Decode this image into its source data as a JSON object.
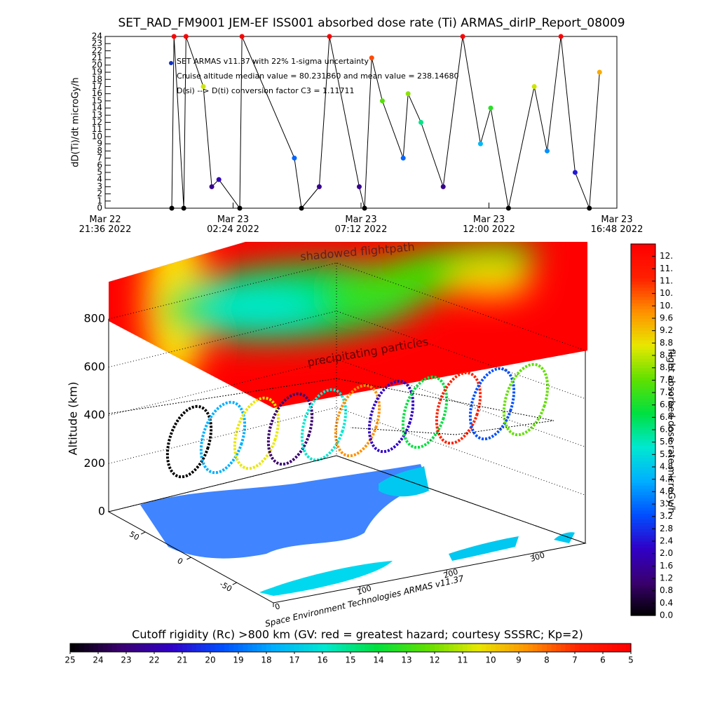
{
  "chart_data": [
    {
      "type": "line",
      "title": "SET_RAD_FM9001  JEM-EF ISS001 absorbed dose rate (Ti) ARMAS_dirIP_Report_08009",
      "y_label": "dD(Ti)/dt microGy/h",
      "annotations": [
        "SET ARMAS v11.37 with 22% 1-sigma uncertainty",
        "Cruise altitude median value = 80.231860 and mean value = 238.14680",
        "D(si) --> D(ti) conversion factor C3 = 1.11711"
      ],
      "x": [
        "2022-03-23T00:06",
        "2022-03-23T00:11",
        "2022-03-23T00:33",
        "2022-03-23T00:38",
        "2022-03-23T01:17",
        "2022-03-23T01:36",
        "2022-03-23T01:52",
        "2022-03-23T02:39",
        "2022-03-23T02:44",
        "2022-03-23T04:42",
        "2022-03-23T04:58",
        "2022-03-23T05:38",
        "2022-03-23T06:01",
        "2022-03-23T07:08",
        "2022-03-23T07:20",
        "2022-03-23T07:36",
        "2022-03-23T08:00",
        "2022-03-23T08:47",
        "2022-03-23T08:58",
        "2022-03-23T09:27",
        "2022-03-23T10:17",
        "2022-03-23T11:01",
        "2022-03-23T11:41",
        "2022-03-23T12:04",
        "2022-03-23T12:44",
        "2022-03-23T13:42",
        "2022-03-23T14:11",
        "2022-03-23T14:42",
        "2022-03-23T15:14",
        "2022-03-23T15:46",
        "2022-03-23T16:09"
      ],
      "values": [
        0,
        24,
        0,
        24,
        17,
        3,
        4,
        0,
        24,
        7,
        0,
        3,
        24,
        3,
        0,
        21,
        15,
        7,
        16,
        12,
        3,
        24,
        9,
        14,
        0,
        17,
        8,
        24,
        5,
        0,
        19
      ],
      "color": "#000000",
      "xlim": [
        "2022-03-22T21:36",
        "2022-03-23T16:48"
      ],
      "xticks": [
        {
          "value": "2022-03-22T21:36",
          "label": "Mar 22\n21:36 2022"
        },
        {
          "value": "2022-03-23T02:24",
          "label": "Mar 23\n02:24 2022"
        },
        {
          "value": "2022-03-23T07:12",
          "label": "Mar 23\n07:12 2022"
        },
        {
          "value": "2022-03-23T12:00",
          "label": "Mar 23\n12:00 2022"
        },
        {
          "value": "2022-03-23T16:48",
          "label": "Mar 23\n16:48 2022"
        }
      ],
      "ylim": [
        0,
        24
      ],
      "yticks": [
        0,
        1,
        2,
        3,
        4,
        5,
        6,
        7,
        8,
        9,
        10,
        11,
        12,
        13,
        14,
        15,
        16,
        17,
        18,
        19,
        20,
        21,
        22,
        23,
        24
      ]
    },
    {
      "type": "perspective3d",
      "z_label": "Altitude (km)",
      "zlim": [
        0,
        800
      ],
      "zticks": [
        0,
        200,
        400,
        600,
        800
      ],
      "xlim": [
        0,
        360
      ],
      "xticks": [
        0,
        100,
        200,
        300
      ],
      "ylim": [
        90,
        -90
      ],
      "yticks": [
        50,
        0,
        -50
      ],
      "annotations": [
        "shadowed flightpath",
        "precipitating particles"
      ],
      "credit": "Space Environment Technologies ARMAS v11.37"
    },
    {
      "type": "colorbar",
      "orientation": "vertical",
      "label": "flight absorbed dose rate microGy/h",
      "colors": [
        "#000000",
        "#3a0070",
        "#3000c8",
        "#0050ff",
        "#00b0ff",
        "#00e8d0",
        "#00e040",
        "#60e000",
        "#e8e800",
        "#ff9000",
        "#ff2000",
        "#ff0000"
      ],
      "lim": [
        0,
        12
      ],
      "ticks": [
        {
          "value": 0,
          "label": "0.0"
        },
        0.4,
        0.8,
        {
          "value": 1.2,
          "label": "1.2"
        },
        1.6,
        {
          "value": 2,
          "label": "2.0"
        },
        2.4,
        2.8,
        3.2,
        3.6,
        {
          "value": 4,
          "label": "4.0"
        },
        4.4,
        4.8,
        5.2,
        5.6,
        {
          "value": 6,
          "label": "6.0"
        },
        6.4,
        6.8,
        7.2,
        7.6,
        {
          "value": 8,
          "label": "8.0"
        },
        8.4,
        8.8,
        9.2,
        9.6,
        {
          "value": 10,
          "label": "10."
        },
        {
          "value": 10.4,
          "label": "10."
        },
        {
          "value": 10.8,
          "label": "11."
        },
        {
          "value": 11.2,
          "label": "11."
        },
        {
          "value": 11.6,
          "label": "12."
        }
      ]
    },
    {
      "type": "colorbar",
      "orientation": "horizontal",
      "label": "Cutoff rigidity (Rc) >800 km (GV: red = greatest hazard; courtesy SSSRC; Kp=2)",
      "colors": [
        "#000000",
        "#3a0070",
        "#3000c8",
        "#0050ff",
        "#00b0ff",
        "#00e8d0",
        "#00e040",
        "#60e000",
        "#e8e800",
        "#ff9000",
        "#ff2000",
        "#ff0000"
      ],
      "lim": [
        25,
        5
      ],
      "ticks": [
        25,
        24,
        23,
        22,
        21,
        20,
        19,
        18,
        17,
        16,
        15,
        14,
        13,
        12,
        11,
        10,
        9,
        8,
        7,
        6,
        5
      ]
    }
  ]
}
